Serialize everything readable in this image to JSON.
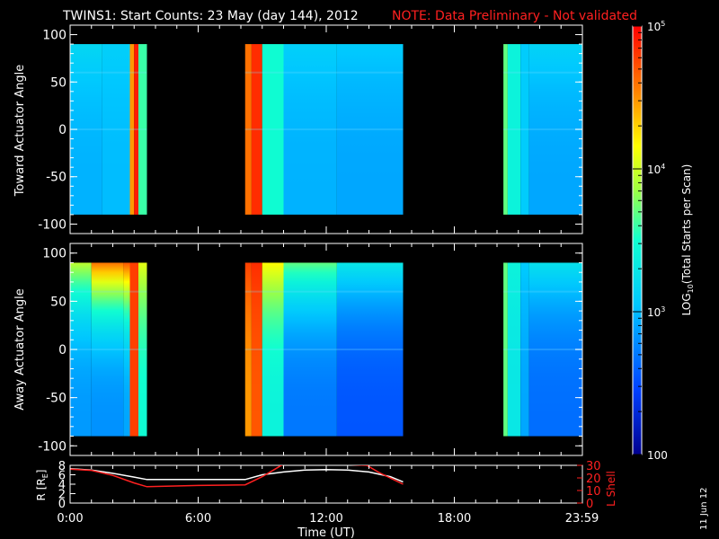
{
  "title": "TWINS1: Start Counts: 23 May (day 144), 2012",
  "note": "NOTE: Data Preliminary - Not validated",
  "stamp": "11 Jun 12",
  "colorbar": {
    "label_main": "LOG",
    "label_sub": "10",
    "label_rest": "(Total Starts per Scan)",
    "ticks": [
      {
        "label": "100",
        "value": 100
      },
      {
        "label": "10",
        "exp": "3",
        "value": 1000
      },
      {
        "label": "10",
        "exp": "4",
        "value": 10000
      },
      {
        "label": "10",
        "exp": "5",
        "value": 100000
      }
    ],
    "range": [
      100,
      100000
    ],
    "scale": "log",
    "colormap": "rainbow (blue-cyan-green-yellow-orange-red)"
  },
  "chart_data": [
    {
      "type": "heatmap",
      "panel": "top",
      "ylabel": "Toward Actuator Angle",
      "ylim": [
        -110,
        110
      ],
      "xlim_hours": [
        0,
        24
      ],
      "yticks": [
        100,
        50,
        0,
        -50,
        -100
      ],
      "data_angle_range": [
        -90,
        90
      ],
      "data_segments_hours": [
        [
          0,
          3.6
        ],
        [
          8.2,
          15.6
        ],
        [
          20.3,
          24
        ]
      ],
      "columns": [
        {
          "t0": 0.0,
          "t1": 1.5,
          "low": 900,
          "high": 1500
        },
        {
          "t0": 1.5,
          "t1": 2.8,
          "low": 1000,
          "high": 1300
        },
        {
          "t0": 2.8,
          "t1": 3.0,
          "low": 30000,
          "high": 30000
        },
        {
          "t0": 3.0,
          "t1": 3.2,
          "low": 80000,
          "high": 80000
        },
        {
          "t0": 3.2,
          "t1": 3.6,
          "low": 4000,
          "high": 4000
        },
        {
          "t0": 8.2,
          "t1": 8.5,
          "low": 40000,
          "high": 40000
        },
        {
          "t0": 8.5,
          "t1": 9.0,
          "low": 70000,
          "high": 70000
        },
        {
          "t0": 9.0,
          "t1": 10.0,
          "low": 3000,
          "high": 3000
        },
        {
          "t0": 10.0,
          "t1": 12.5,
          "low": 900,
          "high": 1300
        },
        {
          "t0": 12.5,
          "t1": 15.6,
          "low": 800,
          "high": 1200
        },
        {
          "t0": 20.3,
          "t1": 20.5,
          "low": 5000,
          "high": 5000
        },
        {
          "t0": 20.5,
          "t1": 21.1,
          "low": 2500,
          "high": 2500
        },
        {
          "t0": 21.1,
          "t1": 21.5,
          "low": 1200,
          "high": 1200
        },
        {
          "t0": 21.5,
          "t1": 24.0,
          "low": 800,
          "high": 1400
        }
      ]
    },
    {
      "type": "heatmap",
      "panel": "middle",
      "ylabel": "Away Actuator Angle",
      "ylim": [
        -110,
        110
      ],
      "xlim_hours": [
        0,
        24
      ],
      "yticks": [
        100,
        50,
        0,
        -50,
        -100
      ],
      "data_angle_range": [
        -90,
        90
      ],
      "data_segments_hours": [
        [
          0,
          3.6
        ],
        [
          8.2,
          15.6
        ],
        [
          20.3,
          24
        ]
      ],
      "columns": [
        {
          "t0": 0.0,
          "t1": 1.0,
          "low": 700,
          "high": 9000
        },
        {
          "t0": 1.0,
          "t1": 2.5,
          "low": 650,
          "high": 40000
        },
        {
          "t0": 2.5,
          "t1": 2.8,
          "low": 800,
          "high": 50000
        },
        {
          "t0": 2.8,
          "t1": 3.2,
          "low": 60000,
          "high": 60000
        },
        {
          "t0": 3.2,
          "t1": 3.6,
          "low": 3000,
          "high": 12000
        },
        {
          "t0": 8.2,
          "t1": 8.5,
          "low": 30000,
          "high": 60000
        },
        {
          "t0": 8.5,
          "t1": 9.0,
          "low": 50000,
          "high": 70000
        },
        {
          "t0": 9.0,
          "t1": 10.0,
          "low": 2500,
          "high": 15000
        },
        {
          "t0": 10.0,
          "t1": 12.5,
          "low": 500,
          "high": 5000
        },
        {
          "t0": 12.5,
          "t1": 15.6,
          "low": 350,
          "high": 2000
        },
        {
          "t0": 20.3,
          "t1": 20.5,
          "low": 5000,
          "high": 5000
        },
        {
          "t0": 20.5,
          "t1": 21.1,
          "low": 2000,
          "high": 2500
        },
        {
          "t0": 21.1,
          "t1": 21.5,
          "low": 800,
          "high": 1200
        },
        {
          "t0": 21.5,
          "t1": 24.0,
          "low": 450,
          "high": 1800
        }
      ]
    },
    {
      "type": "line",
      "panel": "bottom",
      "ylabel_left": "R [R",
      "ylabel_left_sub": "E",
      "ylabel_left_end": "]",
      "ylabel_right": "L Shell",
      "xlabel": "Time (UT)",
      "x_ticklabels": [
        "0:00",
        "6:00",
        "12:00",
        "18:00",
        "23:59"
      ],
      "x_tickvalues": [
        0,
        6,
        12,
        18,
        23.98
      ],
      "xlim": [
        0,
        24
      ],
      "ylim_left": [
        0,
        8
      ],
      "yticks_left": [
        0,
        2,
        4,
        6,
        8
      ],
      "ylim_right": [
        0,
        30
      ],
      "yticks_right": [
        0,
        10,
        20,
        30
      ],
      "series": [
        {
          "axis": "left",
          "color": "#ffffff",
          "x": [
            0,
            1,
            2,
            3,
            3.6,
            5,
            6,
            7,
            8.2,
            9,
            10,
            11,
            12,
            13,
            14,
            15,
            15.6
          ],
          "y": [
            7.3,
            7.0,
            6.3,
            5.5,
            5.0,
            5.0,
            5.0,
            5.0,
            5.0,
            6.0,
            6.6,
            7.0,
            7.1,
            7.0,
            6.6,
            5.6,
            4.5
          ]
        },
        {
          "axis": "right",
          "color": "#ff2020",
          "x": [
            0,
            1,
            2,
            3,
            3.6,
            6,
            8.2,
            9,
            9.7,
            10.0,
            12.5,
            13.9,
            14.5,
            15.6
          ],
          "y": [
            27,
            26,
            22,
            16,
            13,
            14,
            14.5,
            21,
            28,
            31,
            31,
            30,
            24,
            15
          ]
        }
      ]
    }
  ]
}
